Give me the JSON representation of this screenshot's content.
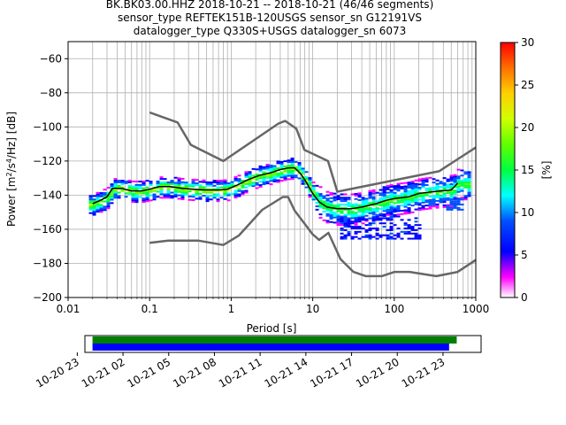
{
  "title_lines": [
    "BK.BK03.00.HHZ   2018-10-21 -- 2018-10-21  (46/46 segments)",
    "sensor_type REFTEK151B-120USGS sensor_sn G12191VS",
    "datalogger_type Q330S+USGS datalogger_sn 6073"
  ],
  "chart_data": {
    "type": "heatmap",
    "title": "BK.BK03.00.HHZ   2018-10-21 -- 2018-10-21  (46/46 segments)",
    "xlabel": "Period [s]",
    "ylabel": "Power [m²/s⁴/Hz] [dB]",
    "x_scale": "log",
    "xlim": [
      0.01,
      1000
    ],
    "ylim": [
      -200,
      -50
    ],
    "x_ticks": [
      0.01,
      0.1,
      1,
      10,
      100,
      1000
    ],
    "x_tick_labels": [
      "0.01",
      "0.1",
      "1",
      "10",
      "100",
      "1000"
    ],
    "y_ticks": [
      -200,
      -180,
      -160,
      -140,
      -120,
      -100,
      -80,
      -60
    ],
    "y_tick_labels": [
      "−200",
      "−180",
      "−160",
      "−140",
      "−120",
      "−100",
      "−80",
      "−60"
    ],
    "grid": true,
    "colorbar": {
      "label": "[%]",
      "range": [
        0,
        30
      ],
      "ticks": [
        0,
        5,
        10,
        15,
        20,
        25,
        30
      ],
      "tick_labels": [
        "0",
        "5",
        "10",
        "15",
        "20",
        "25",
        "30"
      ]
    },
    "series": [
      {
        "name": "",
        "role": "high-noise-model",
        "color": "#666666",
        "x": [
          0.1,
          0.22,
          0.32,
          0.8,
          3.8,
          4.6,
          6.3,
          7.9,
          15.4,
          20,
          354.8,
          1000
        ],
        "y": [
          -91.5,
          -97.4,
          -110.5,
          -120,
          -98,
          -96.5,
          -101,
          -113.5,
          -120,
          -138,
          -126,
          -112
        ]
      },
      {
        "name": "",
        "role": "low-noise-model",
        "color": "#666666",
        "x": [
          0.1,
          0.17,
          0.4,
          0.8,
          1.24,
          2.4,
          4.3,
          5,
          6,
          10,
          12,
          15.6,
          21.9,
          31.6,
          45,
          70,
          101,
          154,
          328,
          600,
          1000
        ],
        "y": [
          -168,
          -166.7,
          -166.7,
          -169.2,
          -163.7,
          -148.6,
          -141.1,
          -141.1,
          -149,
          -163,
          -166.2,
          -162.1,
          -177.5,
          -185,
          -187.5,
          -187.5,
          -185,
          -185,
          -187.5,
          -185,
          -178
        ]
      },
      {
        "name": "",
        "role": "mode",
        "color": "#000000",
        "x": [
          0.02,
          0.025,
          0.03,
          0.035,
          0.045,
          0.06,
          0.08,
          0.1,
          0.13,
          0.18,
          0.25,
          0.35,
          0.5,
          0.7,
          0.9,
          1.2,
          1.6,
          2.2,
          3,
          4,
          5,
          6,
          7,
          8,
          10,
          12,
          15,
          20,
          30,
          40,
          60,
          80,
          100,
          150,
          200,
          300,
          500,
          600
        ],
        "y": [
          -145,
          -143,
          -141,
          -136,
          -136,
          -137.5,
          -137.5,
          -136.5,
          -135,
          -135,
          -136,
          -136.5,
          -137,
          -137,
          -136.5,
          -134,
          -131,
          -128.5,
          -127,
          -125,
          -124,
          -124,
          -127,
          -131,
          -139,
          -144,
          -147,
          -148,
          -148,
          -147,
          -145,
          -143,
          -142,
          -141,
          -139,
          -138,
          -137,
          -133
        ]
      }
    ],
    "density_clusters": [
      {
        "x_range": [
          0.018,
          8
        ],
        "y_center": -137,
        "spread": 3,
        "note": "dense band following mode"
      },
      {
        "x_range": [
          12,
          800
        ],
        "y_center": -137,
        "spread": 4,
        "note": "upper long-period band"
      },
      {
        "x_range": [
          20,
          200
        ],
        "y_center": -160,
        "spread": 6,
        "note": "sparse lower band"
      },
      {
        "x_range": [
          400,
          700
        ],
        "y_center": -145,
        "spread": 2,
        "note": "sparse isolated cells"
      }
    ]
  },
  "timeline": {
    "tick_labels": [
      "10-20 23",
      "10-21 02",
      "10-21 05",
      "10-21 08",
      "10-21 11",
      "10-21 14",
      "10-21 17",
      "10-21 20",
      "10-21 23"
    ],
    "range_hours": [
      -0.5,
      25.5
    ],
    "tick_hours": [
      -1,
      2,
      5,
      8,
      11,
      14,
      17,
      20,
      23
    ],
    "bars": [
      {
        "name": "",
        "color": "#008000",
        "start_hour": 0,
        "end_hour": 23.9
      },
      {
        "name": "",
        "color": "#0000ff",
        "start_hour": 0,
        "end_hour": 23.4
      }
    ]
  }
}
